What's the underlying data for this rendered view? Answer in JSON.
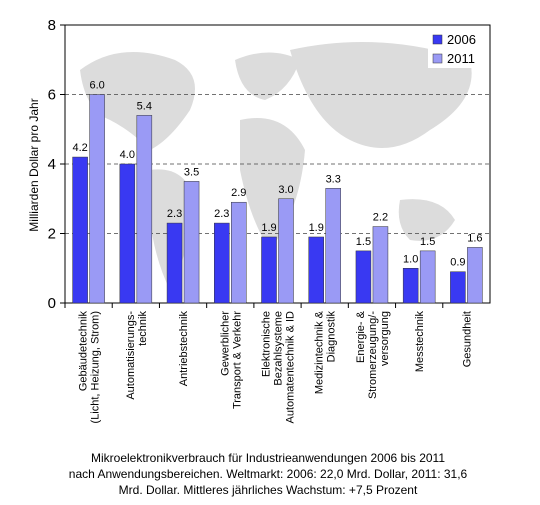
{
  "chart_data": {
    "type": "bar",
    "y_label": "Milliarden Dollar pro Jahr",
    "categories": [
      [
        "Gebäudetechnik",
        "(Licht, Heizung, Strom)"
      ],
      [
        "Automatisierungs-",
        "technik"
      ],
      [
        "Antriebstechnik"
      ],
      [
        "Gewerblicher",
        "Transport & Verkehr"
      ],
      [
        "Elektronische",
        "Bezahlsysteme",
        "Automatentechnik & ID"
      ],
      [
        "Medizintechnik &",
        "Diagnostik"
      ],
      [
        "Energie- &",
        "Stromerzeugung/-",
        "versorgung"
      ],
      [
        "Messtechnik"
      ],
      [
        "Gesundheit"
      ]
    ],
    "series": [
      {
        "name": "2006",
        "color": "#3939f2",
        "values": [
          4.2,
          4.0,
          2.3,
          2.3,
          1.9,
          1.9,
          1.5,
          1.0,
          0.9
        ],
        "value_labels": [
          "4.2",
          "4.0",
          "2.3",
          "2.3",
          "1.9",
          "1.9",
          "1.5",
          "1.0",
          "0.9"
        ]
      },
      {
        "name": "2011",
        "color": "#9a9af5",
        "values": [
          6.0,
          5.4,
          3.5,
          2.9,
          3.0,
          3.3,
          2.2,
          1.5,
          1.6
        ],
        "value_labels": [
          "6.0",
          "5.4",
          "3.5",
          "2.9",
          "3.0",
          "3.3",
          "2.2",
          "1.5",
          "1.6"
        ]
      }
    ],
    "ylim": [
      0,
      8
    ],
    "yticks": [
      0,
      2,
      4,
      6,
      8
    ],
    "grid": true,
    "legend": "top-right",
    "caption": [
      "Mikroelektronikverbrauch für Industrieanwendungen 2006 bis 2011",
      "nach Anwendungsbereichen. Weltmarkt: 2006: 22,0 Mrd. Dollar, 2011: 31,6",
      "Mrd. Dollar. Mittleres jährliches Wachstum: +7,5 Prozent"
    ]
  }
}
